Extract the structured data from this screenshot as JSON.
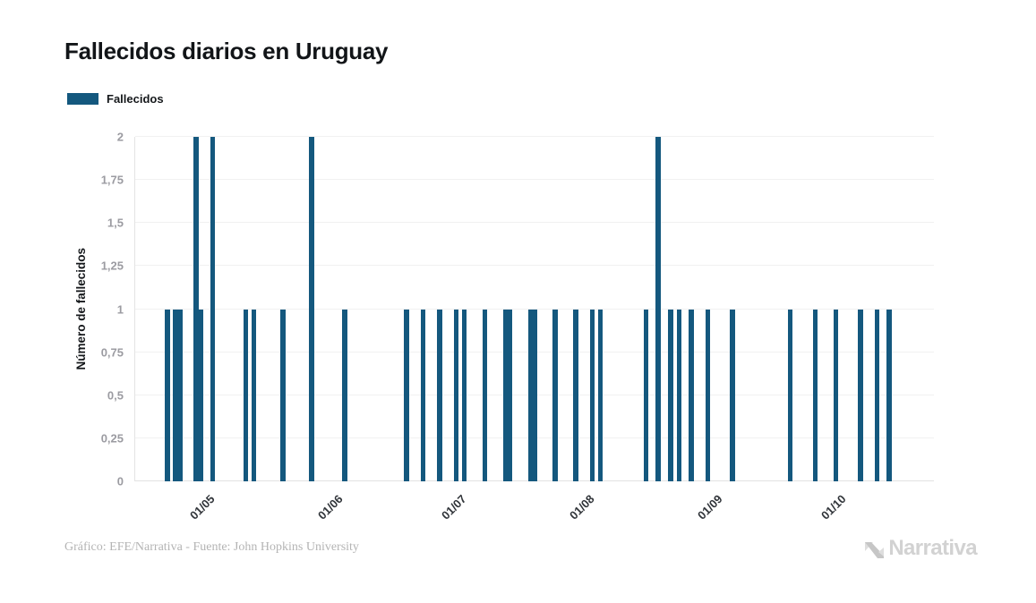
{
  "title": "Fallecidos diarios en Uruguay",
  "legend": {
    "items": [
      {
        "label": "Fallecidos",
        "color": "#14587e"
      }
    ]
  },
  "footer": {
    "credit": "Gráfico: EFE/Narrativa - Fuente: John Hopkins University",
    "brand": "Narrativa"
  },
  "colors": {
    "bar": "#14587e",
    "grid": "#f1f1f1",
    "axis": "#e2e2e2"
  },
  "chart_data": {
    "type": "bar",
    "title": "Fallecidos diarios en Uruguay",
    "xlabel": "",
    "ylabel": "Número de fallecidos",
    "ylim": [
      0,
      2
    ],
    "grid": true,
    "legend_position": "top-left",
    "ytick_values": [
      0,
      0.25,
      0.5,
      0.75,
      1,
      1.25,
      1.5,
      1.75,
      2
    ],
    "ytick_labels": [
      "0",
      "0,25",
      "0,5",
      "0,75",
      "1",
      "1,25",
      "1,5",
      "1,75",
      "2"
    ],
    "xtick_labels": [
      "01/05",
      "01/06",
      "01/07",
      "01/08",
      "01/09",
      "01/10"
    ],
    "series": [
      {
        "name": "Fallecidos",
        "color": "#14587e",
        "points": [
          [
            "21/04",
            1
          ],
          [
            "23/04",
            1
          ],
          [
            "24/04",
            1
          ],
          [
            "28/04",
            2
          ],
          [
            "29/04",
            1
          ],
          [
            "02/05",
            2
          ],
          [
            "10/05",
            1
          ],
          [
            "12/05",
            1
          ],
          [
            "19/05",
            1
          ],
          [
            "26/05",
            2
          ],
          [
            "03/06",
            1
          ],
          [
            "18/06",
            1
          ],
          [
            "22/06",
            1
          ],
          [
            "26/06",
            1
          ],
          [
            "30/06",
            1
          ],
          [
            "02/07",
            1
          ],
          [
            "07/07",
            1
          ],
          [
            "12/07",
            1
          ],
          [
            "13/07",
            1
          ],
          [
            "18/07",
            1
          ],
          [
            "19/07",
            1
          ],
          [
            "24/07",
            1
          ],
          [
            "29/07",
            1
          ],
          [
            "02/08",
            1
          ],
          [
            "04/08",
            1
          ],
          [
            "15/08",
            1
          ],
          [
            "18/08",
            2
          ],
          [
            "21/08",
            1
          ],
          [
            "23/08",
            1
          ],
          [
            "26/08",
            1
          ],
          [
            "30/08",
            1
          ],
          [
            "05/09",
            1
          ],
          [
            "19/09",
            1
          ],
          [
            "25/09",
            1
          ],
          [
            "30/09",
            1
          ],
          [
            "06/10",
            1
          ],
          [
            "10/10",
            1
          ],
          [
            "13/10",
            1
          ]
        ]
      }
    ]
  }
}
